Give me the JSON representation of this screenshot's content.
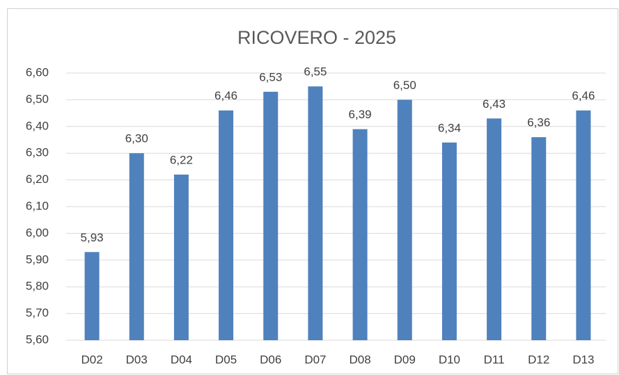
{
  "chart_data": {
    "type": "bar",
    "title": "RICOVERO - 2025",
    "categories": [
      "D02",
      "D03",
      "D04",
      "D05",
      "D06",
      "D07",
      "D08",
      "D09",
      "D10",
      "D11",
      "D12",
      "D13"
    ],
    "values": [
      5.93,
      6.3,
      6.22,
      6.46,
      6.53,
      6.55,
      6.39,
      6.5,
      6.34,
      6.43,
      6.36,
      6.46
    ],
    "value_labels": [
      "5,93",
      "6,30",
      "6,22",
      "6,46",
      "6,53",
      "6,55",
      "6,39",
      "6,50",
      "6,34",
      "6,43",
      "6,36",
      "6,46"
    ],
    "color": "#4f81bd",
    "ylim": [
      5.6,
      6.6
    ],
    "yticks": [
      {
        "value": 5.6,
        "label": "5,60"
      },
      {
        "value": 5.7,
        "label": "5,70"
      },
      {
        "value": 5.8,
        "label": "5,80"
      },
      {
        "value": 5.9,
        "label": "5,90"
      },
      {
        "value": 6.0,
        "label": "6,00"
      },
      {
        "value": 6.1,
        "label": "6,10"
      },
      {
        "value": 6.2,
        "label": "6,20"
      },
      {
        "value": 6.3,
        "label": "6,30"
      },
      {
        "value": 6.4,
        "label": "6,40"
      },
      {
        "value": 6.5,
        "label": "6,50"
      },
      {
        "value": 6.6,
        "label": "6,60"
      }
    ],
    "grid": true
  }
}
